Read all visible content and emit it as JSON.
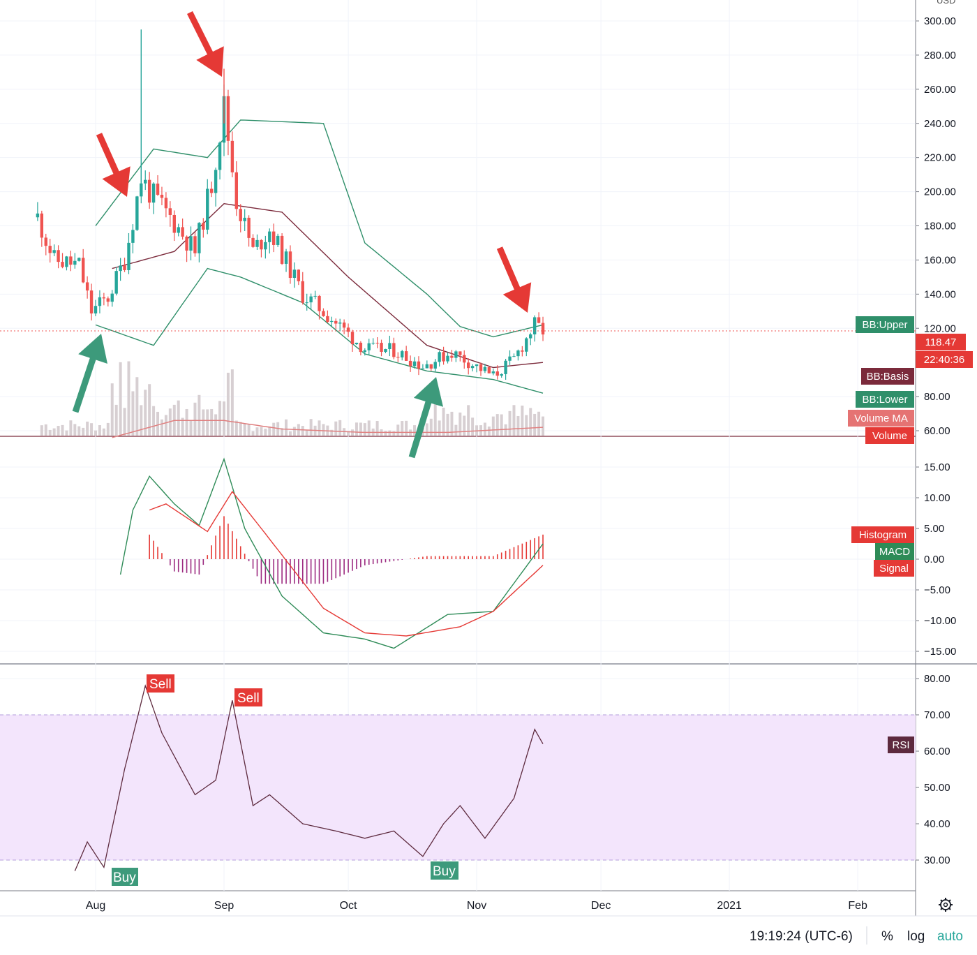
{
  "colors": {
    "up": "#26a69a",
    "down": "#ef5350",
    "bb_band": "#2f8f6a",
    "bb_basis": "#7b2a3b",
    "volume": "#d7cfd2",
    "volume_ma": "#e08080",
    "macd": "#2e8b57",
    "signal": "#e53935",
    "histogram": "#9c2a80",
    "rsi_line": "#5d2a3e",
    "rsi_band": "#f3e5fc",
    "arrow_red": "#e53935",
    "arrow_green": "#3d9a7b"
  },
  "price_axis": {
    "currency": "USD",
    "ticks": [
      "300.00",
      "280.00",
      "260.00",
      "240.00",
      "220.00",
      "200.00",
      "180.00",
      "160.00",
      "140.00",
      "120.00",
      "80.00",
      "60.00"
    ],
    "last_price": "118.47",
    "countdown": "22:40:36"
  },
  "time_axis": {
    "labels": [
      "Aug",
      "Sep",
      "Oct",
      "Nov",
      "Dec",
      "2021",
      "Feb"
    ]
  },
  "legend_tags": {
    "bb_upper": "BB:Upper",
    "bb_basis": "BB:Basis",
    "bb_lower": "BB:Lower",
    "volume_ma": "Volume MA",
    "volume": "Volume",
    "histogram": "Histogram",
    "macd": "MACD",
    "signal": "Signal",
    "rsi": "RSI"
  },
  "macd_axis": {
    "ticks": [
      "15.00",
      "10.00",
      "5.00",
      "0.00",
      "−5.00",
      "−10.00",
      "−15.00"
    ]
  },
  "rsi_axis": {
    "ticks": [
      "80.00",
      "70.00",
      "60.00",
      "50.00",
      "40.00",
      "30.00"
    ]
  },
  "annotations": {
    "sell_1": "Sell",
    "sell_2": "Sell",
    "buy_1": "Buy",
    "buy_2": "Buy"
  },
  "footer": {
    "time": "19:19:24 (UTC-6)",
    "percent": "%",
    "log": "log",
    "auto": "auto"
  },
  "chart_data": [
    {
      "type": "candlestick",
      "title": "",
      "ylim": [
        58,
        310
      ],
      "x_range": [
        "2020-07-18",
        "2021-02-15"
      ],
      "candles_keypoints": [
        [
          "2020-07-18",
          185
        ],
        [
          "2020-07-22",
          160
        ],
        [
          "2020-07-28",
          157
        ],
        [
          "2020-07-31",
          130
        ],
        [
          "2020-08-04",
          138
        ],
        [
          "2020-08-08",
          160
        ],
        [
          "2020-08-12",
          208
        ],
        [
          "2020-08-14",
          200
        ],
        [
          "2020-08-20",
          182
        ],
        [
          "2020-08-25",
          165
        ],
        [
          "2020-08-29",
          205
        ],
        [
          "2020-09-01",
          250
        ],
        [
          "2020-09-04",
          195
        ],
        [
          "2020-09-08",
          165
        ],
        [
          "2020-09-12",
          178
        ],
        [
          "2020-09-20",
          140
        ],
        [
          "2020-09-25",
          130
        ],
        [
          "2020-10-05",
          108
        ],
        [
          "2020-10-12",
          107
        ],
        [
          "2020-10-19",
          98
        ],
        [
          "2020-10-26",
          106
        ],
        [
          "2020-11-05",
          92
        ],
        [
          "2020-11-10",
          102
        ],
        [
          "2020-11-15",
          122
        ],
        [
          "2020-11-17",
          118.47
        ]
      ],
      "bb_upper": [
        [
          "2020-08-01",
          180
        ],
        [
          "2020-08-15",
          225
        ],
        [
          "2020-08-28",
          220
        ],
        [
          "2020-09-05",
          242
        ],
        [
          "2020-09-25",
          240
        ],
        [
          "2020-10-05",
          170
        ],
        [
          "2020-10-20",
          140
        ],
        [
          "2020-10-28",
          121
        ],
        [
          "2020-11-05",
          115
        ],
        [
          "2020-11-17",
          122
        ]
      ],
      "bb_basis": [
        [
          "2020-08-05",
          155
        ],
        [
          "2020-08-20",
          165
        ],
        [
          "2020-09-01",
          193
        ],
        [
          "2020-09-15",
          188
        ],
        [
          "2020-10-01",
          150
        ],
        [
          "2020-10-20",
          110
        ],
        [
          "2020-11-05",
          97
        ],
        [
          "2020-11-17",
          100
        ]
      ],
      "bb_lower": [
        [
          "2020-08-01",
          122
        ],
        [
          "2020-08-15",
          110
        ],
        [
          "2020-08-28",
          155
        ],
        [
          "2020-09-05",
          150
        ],
        [
          "2020-09-20",
          135
        ],
        [
          "2020-10-05",
          105
        ],
        [
          "2020-10-20",
          95
        ],
        [
          "2020-11-05",
          90
        ],
        [
          "2020-11-17",
          82
        ]
      ],
      "volume_ma": [
        [
          "2020-08-05",
          56
        ],
        [
          "2020-08-20",
          66
        ],
        [
          "2020-09-01",
          66
        ],
        [
          "2020-09-15",
          61
        ],
        [
          "2020-10-05",
          59
        ],
        [
          "2020-10-25",
          59
        ],
        [
          "2020-11-17",
          62
        ]
      ]
    },
    {
      "type": "line",
      "name": "MACD",
      "ylim": [
        -16,
        18
      ],
      "macd": [
        [
          "2020-08-07",
          -2.5
        ],
        [
          "2020-08-10",
          8
        ],
        [
          "2020-08-14",
          13.5
        ],
        [
          "2020-08-20",
          9
        ],
        [
          "2020-08-26",
          5.5
        ],
        [
          "2020-09-01",
          16.3
        ],
        [
          "2020-09-06",
          5
        ],
        [
          "2020-09-15",
          -6
        ],
        [
          "2020-09-25",
          -12
        ],
        [
          "2020-10-05",
          -13
        ],
        [
          "2020-10-12",
          -14.5
        ],
        [
          "2020-10-25",
          -9
        ],
        [
          "2020-11-05",
          -8.5
        ],
        [
          "2020-11-17",
          2.5
        ]
      ],
      "signal": [
        [
          "2020-08-14",
          8
        ],
        [
          "2020-08-18",
          9
        ],
        [
          "2020-08-28",
          4.5
        ],
        [
          "2020-09-03",
          11
        ],
        [
          "2020-09-10",
          5
        ],
        [
          "2020-09-25",
          -8
        ],
        [
          "2020-10-05",
          -12
        ],
        [
          "2020-10-15",
          -12.5
        ],
        [
          "2020-10-28",
          -11
        ],
        [
          "2020-11-05",
          -8.5
        ],
        [
          "2020-11-17",
          -1
        ]
      ],
      "histogram": [
        [
          "2020-08-14",
          4
        ],
        [
          "2020-08-20",
          -2
        ],
        [
          "2020-08-26",
          -2.5
        ],
        [
          "2020-09-01",
          7
        ],
        [
          "2020-09-10",
          -4
        ],
        [
          "2020-09-25",
          -4
        ],
        [
          "2020-10-05",
          -1
        ],
        [
          "2020-10-20",
          0.5
        ],
        [
          "2020-11-05",
          0.5
        ],
        [
          "2020-11-17",
          4
        ]
      ]
    },
    {
      "type": "line",
      "name": "RSI",
      "ylim": [
        22,
        84
      ],
      "overbought": 70,
      "oversold": 30,
      "rsi": [
        [
          "2020-07-27",
          27
        ],
        [
          "2020-07-30",
          35
        ],
        [
          "2020-08-03",
          28
        ],
        [
          "2020-08-08",
          55
        ],
        [
          "2020-08-13",
          78
        ],
        [
          "2020-08-17",
          65
        ],
        [
          "2020-08-25",
          48
        ],
        [
          "2020-08-30",
          52
        ],
        [
          "2020-09-03",
          74
        ],
        [
          "2020-09-08",
          45
        ],
        [
          "2020-09-12",
          48
        ],
        [
          "2020-09-20",
          40
        ],
        [
          "2020-09-28",
          38
        ],
        [
          "2020-10-05",
          36
        ],
        [
          "2020-10-12",
          38
        ],
        [
          "2020-10-19",
          31
        ],
        [
          "2020-10-24",
          40
        ],
        [
          "2020-10-28",
          45
        ],
        [
          "2020-11-03",
          36
        ],
        [
          "2020-11-10",
          47
        ],
        [
          "2020-11-15",
          66
        ],
        [
          "2020-11-17",
          62
        ]
      ]
    }
  ]
}
